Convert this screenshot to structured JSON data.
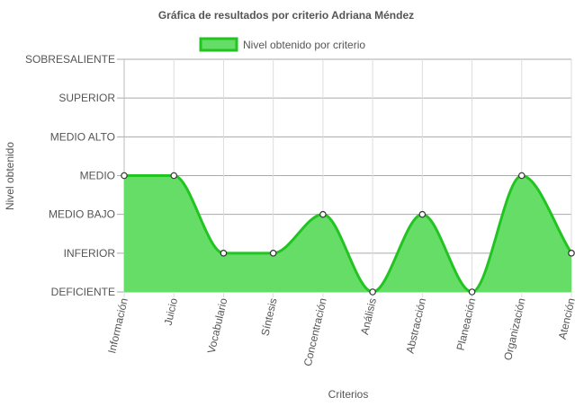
{
  "chart_data": {
    "type": "area",
    "title": "Gráfica de resultados por criterio Adriana Méndez",
    "xlabel": "Criterios",
    "ylabel": "Nivel obtenido",
    "levels": [
      "DEFICIENTE",
      "INFERIOR",
      "MEDIO BAJO",
      "MEDIO",
      "MEDIO ALTO",
      "SUPERIOR",
      "SOBRESALIENTE"
    ],
    "categories": [
      "Información",
      "Juicio",
      "Vocabulario",
      "Síntesis",
      "Concentración",
      "Análisis",
      "Abstracción",
      "Planeación",
      "Organización",
      "Atención"
    ],
    "series": [
      {
        "name": "Nivel obtenido por criterio",
        "values": [
          "MEDIO",
          "MEDIO",
          "INFERIOR",
          "INFERIOR",
          "MEDIO BAJO",
          "DEFICIENTE",
          "MEDIO BAJO",
          "DEFICIENTE",
          "MEDIO",
          "INFERIOR"
        ]
      }
    ],
    "legend_position": "top",
    "grid": true,
    "colors": {
      "fill": "#66dd66",
      "line": "#22c422",
      "point_fill": "#ffffff",
      "point_stroke": "#333333"
    }
  }
}
